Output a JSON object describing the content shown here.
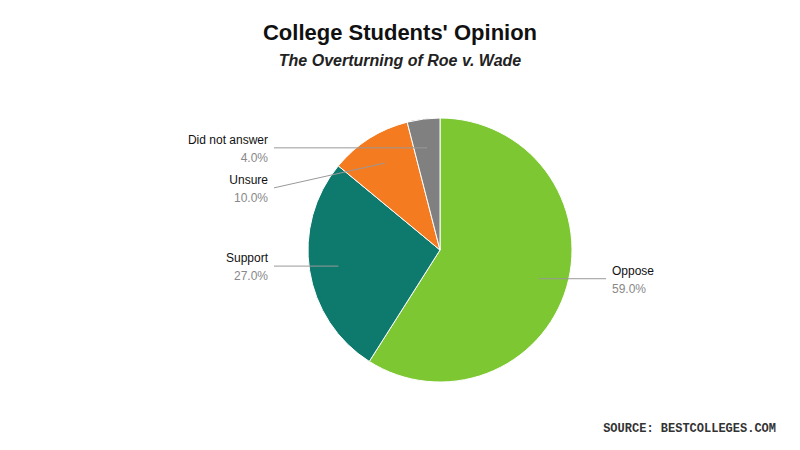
{
  "chart_data": {
    "type": "pie",
    "title": "College Students' Opinion",
    "subtitle": "The Overturning of Roe v. Wade",
    "source": "SOURCE: BESTCOLLEGES.COM",
    "categories": [
      "Oppose",
      "Support",
      "Unsure",
      "Did not answer"
    ],
    "values": [
      59.0,
      27.0,
      10.0,
      4.0
    ],
    "value_labels": [
      "59.0%",
      "27.0%",
      "10.0%",
      "4.0%"
    ],
    "colors": [
      "#7dc832",
      "#0e7a6e",
      "#f47b20",
      "#808080"
    ],
    "data_labels": true
  }
}
